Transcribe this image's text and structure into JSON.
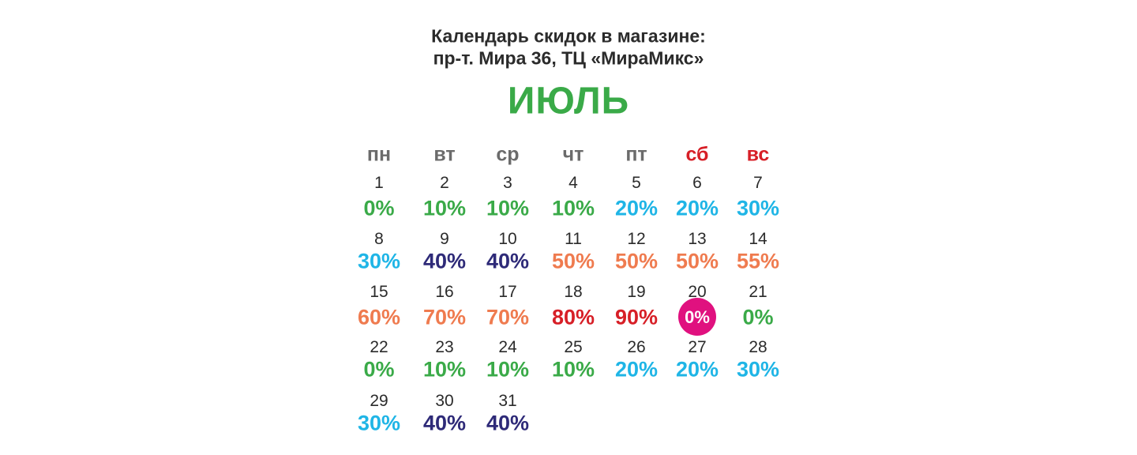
{
  "header": {
    "title_line1": "Календарь скидок в магазине:",
    "title_line2": "пр-т. Мира 36, ТЦ «МираМикс»",
    "month": "ИЮЛЬ",
    "month_color": "#3aaa48"
  },
  "weekdays": [
    {
      "label": "пн",
      "color": "#6b6b6b"
    },
    {
      "label": "вт",
      "color": "#6b6b6b"
    },
    {
      "label": "ср",
      "color": "#6b6b6b"
    },
    {
      "label": "чт",
      "color": "#6b6b6b"
    },
    {
      "label": "пт",
      "color": "#6b6b6b"
    },
    {
      "label": "сб",
      "color": "#d71f27"
    },
    {
      "label": "вс",
      "color": "#d71f27"
    }
  ],
  "days": [
    {
      "day": 1,
      "discount": "0%",
      "color": "#3aaa48"
    },
    {
      "day": 2,
      "discount": "10%",
      "color": "#3aaa48"
    },
    {
      "day": 3,
      "discount": "10%",
      "color": "#3aaa48"
    },
    {
      "day": 4,
      "discount": "10%",
      "color": "#3aaa48"
    },
    {
      "day": 5,
      "discount": "20%",
      "color": "#1fb5e6"
    },
    {
      "day": 6,
      "discount": "20%",
      "color": "#1fb5e6"
    },
    {
      "day": 7,
      "discount": "30%",
      "color": "#1fb5e6"
    },
    {
      "day": 8,
      "discount": "30%",
      "color": "#1fb5e6"
    },
    {
      "day": 9,
      "discount": "40%",
      "color": "#2e2a78"
    },
    {
      "day": 10,
      "discount": "40%",
      "color": "#2e2a78"
    },
    {
      "day": 11,
      "discount": "50%",
      "color": "#ef7b4f"
    },
    {
      "day": 12,
      "discount": "50%",
      "color": "#ef7b4f"
    },
    {
      "day": 13,
      "discount": "50%",
      "color": "#ef7b4f"
    },
    {
      "day": 14,
      "discount": "55%",
      "color": "#ef7b4f"
    },
    {
      "day": 15,
      "discount": "60%",
      "color": "#ef7b4f"
    },
    {
      "day": 16,
      "discount": "70%",
      "color": "#ef7b4f"
    },
    {
      "day": 17,
      "discount": "70%",
      "color": "#ef7b4f"
    },
    {
      "day": 18,
      "discount": "80%",
      "color": "#d71f27"
    },
    {
      "day": 19,
      "discount": "90%",
      "color": "#d71f27"
    },
    {
      "day": 20,
      "discount": "0%",
      "color": "#ffffff",
      "badge": "#e0117f"
    },
    {
      "day": 21,
      "discount": "0%",
      "color": "#3aaa48"
    },
    {
      "day": 22,
      "discount": "0%",
      "color": "#3aaa48"
    },
    {
      "day": 23,
      "discount": "10%",
      "color": "#3aaa48"
    },
    {
      "day": 24,
      "discount": "10%",
      "color": "#3aaa48"
    },
    {
      "day": 25,
      "discount": "10%",
      "color": "#3aaa48"
    },
    {
      "day": 26,
      "discount": "20%",
      "color": "#1fb5e6"
    },
    {
      "day": 27,
      "discount": "20%",
      "color": "#1fb5e6"
    },
    {
      "day": 28,
      "discount": "30%",
      "color": "#1fb5e6"
    },
    {
      "day": 29,
      "discount": "30%",
      "color": "#1fb5e6"
    },
    {
      "day": 30,
      "discount": "40%",
      "color": "#2e2a78"
    },
    {
      "day": 31,
      "discount": "40%",
      "color": "#2e2a78"
    }
  ]
}
